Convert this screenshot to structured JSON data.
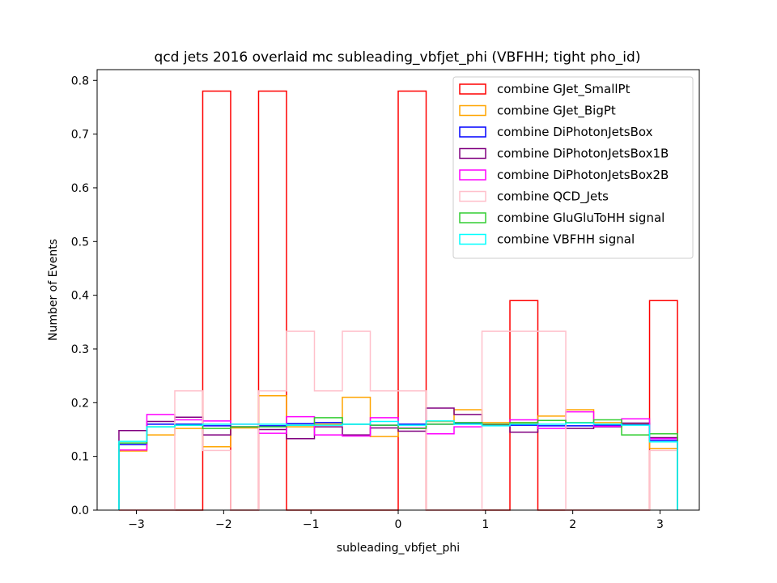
{
  "chart_data": {
    "type": "step-histogram",
    "title": "qcd jets 2016 overlaid mc subleading_vbfjet_phi (VBFHH; tight pho_id)",
    "xlabel": "subleading_vbfjet_phi",
    "ylabel": "Number of Events",
    "xlim": [
      -3.45,
      3.45
    ],
    "ylim": [
      0,
      0.82
    ],
    "xticks": [
      -3,
      -2,
      -1,
      0,
      1,
      2,
      3
    ],
    "yticks": [
      0.0,
      0.1,
      0.2,
      0.3,
      0.4,
      0.5,
      0.6,
      0.7,
      0.8
    ],
    "bin_edges": [
      -3.2,
      -2.88,
      -2.56,
      -2.24,
      -1.92,
      -1.6,
      -1.28,
      -0.96,
      -0.64,
      -0.32,
      0.0,
      0.32,
      0.64,
      0.96,
      1.28,
      1.6,
      1.92,
      2.24,
      2.56,
      2.88,
      3.2
    ],
    "legend_position": "upper right",
    "series": [
      {
        "name": "combine GJet_SmallPt",
        "color": "#ff0000",
        "values": [
          0.0,
          0.0,
          0.0,
          0.78,
          0.0,
          0.78,
          0.0,
          0.0,
          0.0,
          0.0,
          0.78,
          0.0,
          0.0,
          0.0,
          0.39,
          0.0,
          0.0,
          0.0,
          0.0,
          0.39
        ]
      },
      {
        "name": "combine GJet_BigPt",
        "color": "#ffa500",
        "values": [
          0.11,
          0.14,
          0.152,
          0.118,
          0.153,
          0.213,
          0.155,
          0.16,
          0.21,
          0.137,
          0.152,
          0.165,
          0.187,
          0.163,
          0.162,
          0.175,
          0.187,
          0.163,
          0.16,
          0.115
        ]
      },
      {
        "name": "combine DiPhotonJetsBox",
        "color": "#0000ff",
        "values": [
          0.122,
          0.16,
          0.16,
          0.157,
          0.155,
          0.157,
          0.161,
          0.163,
          0.16,
          0.158,
          0.16,
          0.16,
          0.161,
          0.16,
          0.158,
          0.157,
          0.157,
          0.158,
          0.159,
          0.13
        ]
      },
      {
        "name": "combine DiPhotonJetsBox1B",
        "color": "#800080",
        "values": [
          0.148,
          0.165,
          0.173,
          0.14,
          0.155,
          0.15,
          0.133,
          0.155,
          0.14,
          0.153,
          0.147,
          0.19,
          0.178,
          0.158,
          0.145,
          0.167,
          0.152,
          0.155,
          0.162,
          0.135
        ]
      },
      {
        "name": "combine DiPhotonJetsBox2B",
        "color": "#ff00ff",
        "values": [
          0.112,
          0.178,
          0.168,
          0.166,
          0.16,
          0.143,
          0.174,
          0.14,
          0.138,
          0.172,
          0.153,
          0.142,
          0.155,
          0.16,
          0.168,
          0.152,
          0.183,
          0.156,
          0.17,
          0.133
        ]
      },
      {
        "name": "combine QCD_Jets",
        "color": "#ffc0cb",
        "values": [
          0.0,
          0.0,
          0.222,
          0.111,
          0.0,
          0.222,
          0.333,
          0.222,
          0.333,
          0.222,
          0.222,
          0.0,
          0.0,
          0.333,
          0.333,
          0.333,
          0.0,
          0.0,
          0.0,
          0.111
        ]
      },
      {
        "name": "combine GluGluToHH signal",
        "color": "#32cd32",
        "values": [
          0.125,
          0.155,
          0.158,
          0.152,
          0.155,
          0.155,
          0.158,
          0.172,
          0.16,
          0.158,
          0.152,
          0.16,
          0.163,
          0.16,
          0.163,
          0.167,
          0.163,
          0.168,
          0.14,
          0.142
        ]
      },
      {
        "name": "combine VBFHH signal",
        "color": "#00ffff",
        "values": [
          0.128,
          0.155,
          0.158,
          0.16,
          0.16,
          0.16,
          0.158,
          0.158,
          0.16,
          0.165,
          0.158,
          0.166,
          0.16,
          0.157,
          0.16,
          0.16,
          0.162,
          0.16,
          0.158,
          0.127
        ]
      }
    ]
  }
}
